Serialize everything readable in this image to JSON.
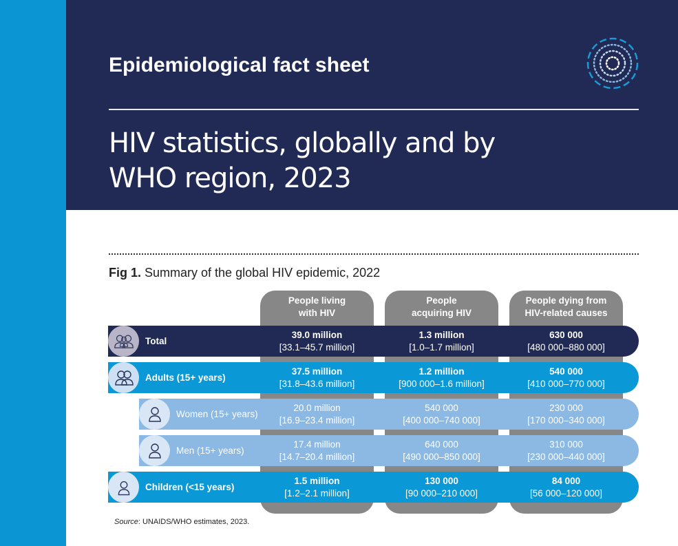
{
  "header": {
    "kicker": "Epidemiological fact sheet",
    "title_line1": "HIV statistics, globally and by",
    "title_line2": "WHO region, 2023"
  },
  "figure": {
    "label": "Fig 1.",
    "caption": " Summary of the global HIV epidemic, 2022",
    "columns": [
      {
        "line1": "People living",
        "line2": "with HIV"
      },
      {
        "line1": "People",
        "line2": "acquiring HIV"
      },
      {
        "line1": "People dying from",
        "line2": "HIV-related causes"
      }
    ],
    "rows": [
      {
        "label": "Total",
        "icon": "family-icon",
        "cells": [
          {
            "value": "39.0 million",
            "range": "[33.1–45.7 million]"
          },
          {
            "value": "1.3 million",
            "range": "[1.0–1.7 million]"
          },
          {
            "value": "630 000",
            "range": "[480 000–880 000]"
          }
        ]
      },
      {
        "label": "Adults (15+ years)",
        "icon": "adults-icon",
        "cells": [
          {
            "value": "37.5 million",
            "range": "[31.8–43.6 million]"
          },
          {
            "value": "1.2 million",
            "range": "[900 000–1.6 million]"
          },
          {
            "value": "540 000",
            "range": "[410 000–770 000]"
          }
        ]
      },
      {
        "label": "Women (15+ years)",
        "icon": "woman-icon",
        "cells": [
          {
            "value": "20.0 million",
            "range": "[16.9–23.4 million]"
          },
          {
            "value": "540 000",
            "range": "[400 000–740 000]"
          },
          {
            "value": "230 000",
            "range": "[170 000–340 000]"
          }
        ]
      },
      {
        "label": "Men (15+ years)",
        "icon": "man-icon",
        "cells": [
          {
            "value": "17.4 million",
            "range": "[14.7–20.4 million]"
          },
          {
            "value": "640 000",
            "range": "[490 000–850 000]"
          },
          {
            "value": "310 000",
            "range": "[230 000–440 000]"
          }
        ]
      },
      {
        "label": "Children (<15 years)",
        "icon": "child-icon",
        "cells": [
          {
            "value": "1.5 million",
            "range": "[1.2–2.1 million]"
          },
          {
            "value": "130 000",
            "range": "[90 000–210 000]"
          },
          {
            "value": "84 000",
            "range": "[56 000–120 000]"
          }
        ]
      }
    ],
    "source_label": "Source",
    "source_text": ": UNAIDS/WHO estimates, 2023."
  },
  "colors": {
    "navy": "#212a54",
    "blue": "#0b98d6",
    "light_blue": "#8bb9e4",
    "gray": "#878787"
  }
}
